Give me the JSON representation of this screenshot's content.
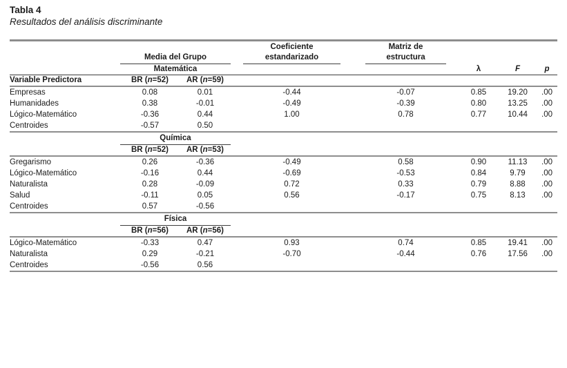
{
  "page": {
    "title": "Tabla 4",
    "subtitle": "Resultados del análisis discriminante"
  },
  "colors": {
    "background": "#ffffff",
    "text": "#1b1b1b",
    "rule_thin": "#3c3c3c",
    "rule_thick": "#8d8d8d"
  },
  "table": {
    "group_headers": {
      "media": "Media del Grupo",
      "coef_line1": "Coeficiente",
      "coef_line2": "estandarizado",
      "matriz_line1": "Matriz de",
      "matriz_line2": "estructura",
      "lambda": "λ",
      "f": "F",
      "p": "p"
    },
    "predictor_header": "Variable Predictora",
    "sections": [
      {
        "name": "Matemática",
        "br": "BR (n=52)",
        "ar": "AR (n=59)",
        "rows": [
          {
            "label": "Empresas",
            "br": "0.08",
            "ar": "0.01",
            "coef": "-0.44",
            "matriz": "-0.07",
            "lambda": "0.85",
            "f": "19.20",
            "p": ".00"
          },
          {
            "label": "Humanidades",
            "br": "0.38",
            "ar": "-0.01",
            "coef": "-0.49",
            "matriz": "-0.39",
            "lambda": "0.80",
            "f": "13.25",
            "p": ".00"
          },
          {
            "label": "Lógico-Matemático",
            "br": "-0.36",
            "ar": "0.44",
            "coef": "1.00",
            "matriz": "0.78",
            "lambda": "0.77",
            "f": "10.44",
            "p": ".00"
          },
          {
            "label": "Centroides",
            "br": "-0.57",
            "ar": "0.50",
            "coef": "",
            "matriz": "",
            "lambda": "",
            "f": "",
            "p": ""
          }
        ]
      },
      {
        "name": "Química",
        "br": "BR (n=52)",
        "ar": "AR (n=53)",
        "rows": [
          {
            "label": "Gregarismo",
            "br": "0.26",
            "ar": "-0.36",
            "coef": "-0.49",
            "matriz": "0.58",
            "lambda": "0.90",
            "f": "11.13",
            "p": ".00"
          },
          {
            "label": "Lógico-Matemático",
            "br": "-0.16",
            "ar": "0.44",
            "coef": "-0.69",
            "matriz": "-0.53",
            "lambda": "0.84",
            "f": "9.79",
            "p": ".00"
          },
          {
            "label": "Naturalista",
            "br": "0.28",
            "ar": "-0.09",
            "coef": "0.72",
            "matriz": "0.33",
            "lambda": "0.79",
            "f": "8.88",
            "p": ".00"
          },
          {
            "label": "Salud",
            "br": "-0.11",
            "ar": "0.05",
            "coef": "0.56",
            "matriz": "-0.17",
            "lambda": "0.75",
            "f": "8.13",
            "p": ".00"
          },
          {
            "label": "Centroides",
            "br": "0.57",
            "ar": "-0.56",
            "coef": "",
            "matriz": "",
            "lambda": "",
            "f": "",
            "p": ""
          }
        ]
      },
      {
        "name": "Física",
        "br": "BR (n=56)",
        "ar": "AR (n=56)",
        "rows": [
          {
            "label": "Lógico-Matemático",
            "br": "-0.33",
            "ar": "0.47",
            "coef": "0.93",
            "matriz": "0.74",
            "lambda": "0.85",
            "f": "19.41",
            "p": ".00"
          },
          {
            "label": "Naturalista",
            "br": "0.29",
            "ar": "-0.21",
            "coef": "-0.70",
            "matriz": "-0.44",
            "lambda": "0.76",
            "f": "17.56",
            "p": ".00"
          },
          {
            "label": "Centroides",
            "br": "-0.56",
            "ar": "0.56",
            "coef": "",
            "matriz": "",
            "lambda": "",
            "f": "",
            "p": ""
          }
        ]
      }
    ]
  }
}
